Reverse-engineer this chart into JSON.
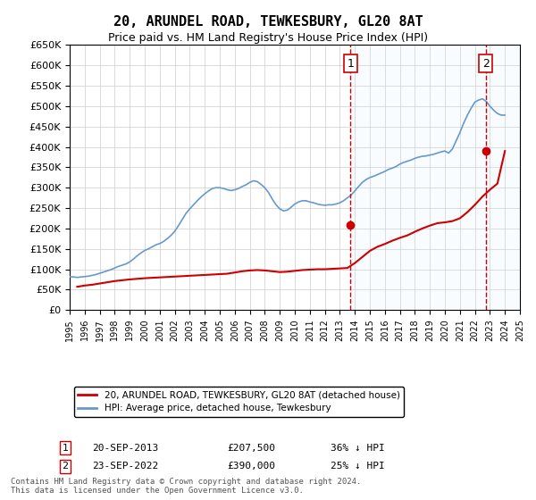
{
  "title": "20, ARUNDEL ROAD, TEWKESBURY, GL20 8AT",
  "subtitle": "Price paid vs. HM Land Registry's House Price Index (HPI)",
  "legend_line1": "20, ARUNDEL ROAD, TEWKESBURY, GL20 8AT (detached house)",
  "legend_line2": "HPI: Average price, detached house, Tewkesbury",
  "annotation1_label": "1",
  "annotation1_date": "20-SEP-2013",
  "annotation1_price": "£207,500",
  "annotation1_hpi": "36% ↓ HPI",
  "annotation1_year": 2013.72,
  "annotation1_value": 207500,
  "annotation2_label": "2",
  "annotation2_date": "23-SEP-2022",
  "annotation2_price": "£390,000",
  "annotation2_hpi": "25% ↓ HPI",
  "annotation2_year": 2022.72,
  "annotation2_value": 390000,
  "xmin": 1995,
  "xmax": 2025,
  "ymin": 0,
  "ymax": 650000,
  "ytick_interval": 50000,
  "line_color_red": "#cc0000",
  "line_color_blue": "#6699cc",
  "vline_color": "#cc0000",
  "shade_color": "#ddeeff",
  "background_color": "#ffffff",
  "grid_color": "#cccccc",
  "footer": "Contains HM Land Registry data © Crown copyright and database right 2024.\nThis data is licensed under the Open Government Licence v3.0.",
  "hpi_data_x": [
    1995.0,
    1995.25,
    1995.5,
    1995.75,
    1996.0,
    1996.25,
    1996.5,
    1996.75,
    1997.0,
    1997.25,
    1997.5,
    1997.75,
    1998.0,
    1998.25,
    1998.5,
    1998.75,
    1999.0,
    1999.25,
    1999.5,
    1999.75,
    2000.0,
    2000.25,
    2000.5,
    2000.75,
    2001.0,
    2001.25,
    2001.5,
    2001.75,
    2002.0,
    2002.25,
    2002.5,
    2002.75,
    2003.0,
    2003.25,
    2003.5,
    2003.75,
    2004.0,
    2004.25,
    2004.5,
    2004.75,
    2005.0,
    2005.25,
    2005.5,
    2005.75,
    2006.0,
    2006.25,
    2006.5,
    2006.75,
    2007.0,
    2007.25,
    2007.5,
    2007.75,
    2008.0,
    2008.25,
    2008.5,
    2008.75,
    2009.0,
    2009.25,
    2009.5,
    2009.75,
    2010.0,
    2010.25,
    2010.5,
    2010.75,
    2011.0,
    2011.25,
    2011.5,
    2011.75,
    2012.0,
    2012.25,
    2012.5,
    2012.75,
    2013.0,
    2013.25,
    2013.5,
    2013.75,
    2014.0,
    2014.25,
    2014.5,
    2014.75,
    2015.0,
    2015.25,
    2015.5,
    2015.75,
    2016.0,
    2016.25,
    2016.5,
    2016.75,
    2017.0,
    2017.25,
    2017.5,
    2017.75,
    2018.0,
    2018.25,
    2018.5,
    2018.75,
    2019.0,
    2019.25,
    2019.5,
    2019.75,
    2020.0,
    2020.25,
    2020.5,
    2020.75,
    2021.0,
    2021.25,
    2021.5,
    2021.75,
    2022.0,
    2022.25,
    2022.5,
    2022.75,
    2023.0,
    2023.25,
    2023.5,
    2023.75,
    2024.0
  ],
  "hpi_data_y": [
    82000,
    81000,
    80000,
    81000,
    82000,
    83000,
    85000,
    87000,
    90000,
    93000,
    96000,
    99000,
    103000,
    107000,
    110000,
    113000,
    118000,
    125000,
    133000,
    140000,
    146000,
    150000,
    155000,
    160000,
    163000,
    168000,
    175000,
    183000,
    193000,
    207000,
    222000,
    237000,
    248000,
    258000,
    268000,
    277000,
    285000,
    292000,
    298000,
    300000,
    300000,
    298000,
    295000,
    293000,
    295000,
    298000,
    303000,
    307000,
    313000,
    317000,
    315000,
    308000,
    300000,
    288000,
    272000,
    258000,
    248000,
    243000,
    245000,
    252000,
    260000,
    265000,
    268000,
    268000,
    265000,
    263000,
    260000,
    258000,
    257000,
    258000,
    258000,
    260000,
    263000,
    268000,
    275000,
    282000,
    292000,
    303000,
    313000,
    320000,
    325000,
    328000,
    332000,
    336000,
    340000,
    345000,
    348000,
    352000,
    358000,
    362000,
    365000,
    368000,
    372000,
    375000,
    377000,
    378000,
    380000,
    382000,
    385000,
    388000,
    390000,
    385000,
    395000,
    415000,
    435000,
    458000,
    478000,
    495000,
    510000,
    515000,
    518000,
    512000,
    500000,
    490000,
    482000,
    478000,
    478000
  ],
  "price_data_x": [
    1995.5,
    1996.0,
    1996.5,
    1997.0,
    1997.5,
    1998.0,
    1999.0,
    2000.0,
    2001.0,
    2002.0,
    2003.0,
    2004.0,
    2005.0,
    2005.5,
    2006.0,
    2006.5,
    2007.0,
    2007.5,
    2008.0,
    2008.5,
    2009.0,
    2009.5,
    2010.0,
    2010.5,
    2011.0,
    2011.5,
    2012.0,
    2012.5,
    2013.0,
    2013.5,
    2014.0,
    2014.5,
    2015.0,
    2015.5,
    2016.0,
    2016.5,
    2017.0,
    2017.5,
    2018.0,
    2018.5,
    2019.0,
    2019.5,
    2020.0,
    2020.5,
    2021.0,
    2021.5,
    2022.0,
    2022.5,
    2023.0,
    2023.5,
    2024.0
  ],
  "price_data_y": [
    57000,
    60000,
    62000,
    65000,
    68000,
    71000,
    75000,
    78000,
    80000,
    82000,
    84000,
    86000,
    88000,
    89000,
    92000,
    95000,
    97000,
    98000,
    97000,
    95000,
    93000,
    94000,
    96000,
    98000,
    99000,
    100000,
    100000,
    101000,
    102000,
    103000,
    115000,
    130000,
    145000,
    155000,
    162000,
    170000,
    177000,
    183000,
    192000,
    200000,
    207000,
    213000,
    215000,
    218000,
    225000,
    240000,
    258000,
    278000,
    295000,
    310000,
    390000
  ]
}
